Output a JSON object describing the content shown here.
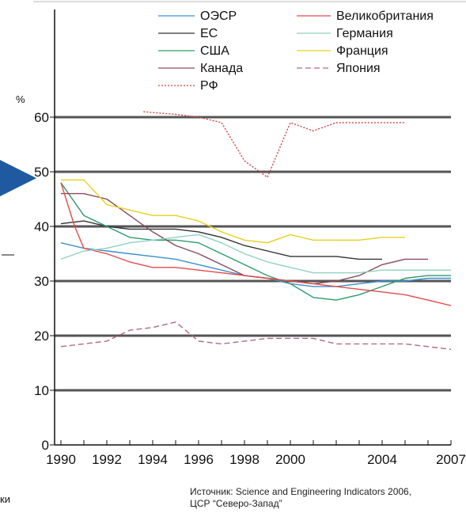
{
  "chart_data": {
    "type": "line",
    "ylabel": "%",
    "ylim": [
      0,
      65
    ],
    "xlim": [
      1990,
      2007
    ],
    "yticks": [
      0,
      10,
      20,
      30,
      40,
      50,
      60
    ],
    "xticks": [
      1990,
      1992,
      1994,
      1996,
      1998,
      2000,
      2004,
      2007
    ],
    "grid": "horizontal",
    "legend_position": "top",
    "series": [
      {
        "name": "ОЭСР",
        "color": "#3b8fd0",
        "style": "solid",
        "x": [
          1990,
          1991,
          1992,
          1993,
          1994,
          1995,
          1996,
          1997,
          1998,
          1999,
          2000,
          2001,
          2002,
          2003,
          2004,
          2005,
          2006,
          2007
        ],
        "y": [
          37,
          36,
          35.5,
          35,
          34.5,
          34,
          33,
          32,
          31,
          30.5,
          29.5,
          29,
          29,
          29.5,
          30,
          30,
          30.5,
          30.5
        ]
      },
      {
        "name": "ЕС",
        "color": "#333333",
        "style": "solid",
        "x": [
          1990,
          1991,
          1992,
          1993,
          1994,
          1995,
          1996,
          1997,
          1998,
          1999,
          2000,
          2001,
          2002,
          2003,
          2004
        ],
        "y": [
          40.5,
          41,
          40,
          39.5,
          39.5,
          39.5,
          39,
          38,
          36.5,
          35.5,
          34.5,
          34.5,
          34.5,
          34,
          34
        ]
      },
      {
        "name": "США",
        "color": "#2e9a6c",
        "style": "solid",
        "x": [
          1990,
          1991,
          1992,
          1993,
          1994,
          1995,
          1996,
          1997,
          1998,
          1999,
          2000,
          2001,
          2002,
          2003,
          2004,
          2005,
          2006,
          2007
        ],
        "y": [
          48,
          42,
          40,
          38,
          37.5,
          37.5,
          37,
          35,
          33,
          31,
          29.5,
          27,
          26.5,
          27.5,
          29,
          30.5,
          31,
          31
        ]
      },
      {
        "name": "Канада",
        "color": "#8b4a5c",
        "style": "solid",
        "x": [
          1990,
          1991,
          1992,
          1993,
          1994,
          1995,
          1996,
          1997,
          1998,
          1999,
          2000,
          2001,
          2002,
          2003,
          2004,
          2005,
          2006
        ],
        "y": [
          46,
          46,
          45,
          42,
          39,
          36.5,
          35,
          33,
          31,
          30.5,
          30,
          29.5,
          30,
          31,
          33,
          34,
          34
        ]
      },
      {
        "name": "РФ",
        "color": "#d04040",
        "style": "dotted",
        "x": [
          1993.6,
          1995,
          1996,
          1997,
          1998,
          1999,
          2000,
          2001,
          2002,
          2003,
          2004,
          2005
        ],
        "y": [
          61,
          60.5,
          60,
          59,
          52,
          49,
          59,
          57.5,
          59,
          59,
          59,
          59
        ]
      },
      {
        "name": "Великобритания",
        "color": "#e34a4a",
        "style": "solid",
        "x": [
          1990,
          1990.6,
          1991,
          1992,
          1993,
          1994,
          1995,
          1996,
          1997,
          1998,
          1999,
          2000,
          2001,
          2002,
          2003,
          2004,
          2005,
          2006,
          2007
        ],
        "y": [
          48,
          40,
          36,
          35,
          33.5,
          32.5,
          32.5,
          32,
          31.5,
          31,
          30.5,
          30,
          29.5,
          29,
          28.5,
          28,
          27.5,
          26.5,
          25.5
        ]
      },
      {
        "name": "Германия",
        "color": "#8fd2c0",
        "style": "solid",
        "x": [
          1990,
          1991,
          1992,
          1993,
          1994,
          1995,
          1996,
          1997,
          1998,
          1999,
          2000,
          2001,
          2002,
          2003,
          2004,
          2005,
          2006,
          2007
        ],
        "y": [
          34,
          35.5,
          36,
          37,
          37.5,
          38,
          38.5,
          37,
          35,
          33.5,
          32.5,
          31.5,
          31.5,
          31.5,
          32,
          32,
          32,
          32
        ]
      },
      {
        "name": "Франция",
        "color": "#e8d020",
        "style": "solid",
        "x": [
          1990,
          1991,
          1992,
          1993,
          1994,
          1995,
          1996,
          1997,
          1998,
          1999,
          2000,
          2001,
          2002,
          2003,
          2004,
          2005
        ],
        "y": [
          48.5,
          48.5,
          44,
          43,
          42,
          42,
          41,
          39,
          37.5,
          37,
          38.5,
          37.5,
          37.5,
          37.5,
          38,
          38
        ]
      },
      {
        "name": "Япония",
        "color": "#b06a8a",
        "style": "dashed",
        "x": [
          1990,
          1991,
          1992,
          1993,
          1994,
          1995,
          1996,
          1997,
          1998,
          1999,
          2000,
          2001,
          2002,
          2003,
          2004,
          2005,
          2006,
          2007
        ],
        "y": [
          18,
          18.5,
          19,
          21,
          21.5,
          22.5,
          19,
          18.5,
          19,
          19.5,
          19.5,
          19.5,
          18.5,
          18.5,
          18.5,
          18.5,
          18,
          17.5
        ]
      }
    ]
  },
  "source": {
    "line1": "Источник: Science and Engineering Indicators 2006,",
    "line2": "ЦСР “Северо-Запад”"
  },
  "side_fragment": "ки",
  "colors": {
    "grid": "#555555",
    "pointer": "#1f5aa0"
  }
}
